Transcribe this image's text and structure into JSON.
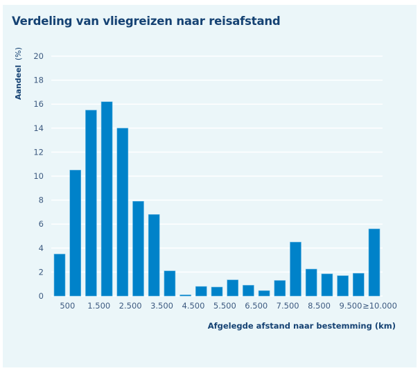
{
  "chart_data": {
    "type": "bar",
    "title": "Verdeling van vliegreizen naar reisafstand",
    "xlabel": "Afgelegde afstand naar bestemming (km)",
    "ylabel_bold": "Aandeel",
    "ylabel_unit": "(%)",
    "ylim": [
      0,
      20
    ],
    "yticks": [
      0,
      2,
      4,
      6,
      8,
      10,
      12,
      14,
      16,
      18,
      20
    ],
    "grid": true,
    "bins": [
      "0-500",
      "500-1.000",
      "1.000-1.500",
      "1.500-2.000",
      "2.000-2.500",
      "2.500-3.000",
      "3.000-3.500",
      "3.500-4.000",
      "4.000-4.500",
      "4.500-5.000",
      "5.000-5.500",
      "5.500-6.000",
      "6.000-6.500",
      "6.500-7.000",
      "7.000-7.500",
      "7.500-8.000",
      "8.000-8.500",
      "8.500-9.000",
      "9.000-9.500",
      "9.500-10.000",
      "≥10.000"
    ],
    "values": [
      3.5,
      10.5,
      15.5,
      16.2,
      14.0,
      7.9,
      6.8,
      2.1,
      0.1,
      0.8,
      0.75,
      1.35,
      0.9,
      0.45,
      1.3,
      4.5,
      2.25,
      1.85,
      1.7,
      1.9,
      5.6
    ],
    "xtick_labels": [
      "500",
      "1.500",
      "2.500",
      "3.500",
      "4.500",
      "5.500",
      "6.500",
      "7.500",
      "8.500",
      "9.500",
      "≥10.000"
    ],
    "colors": {
      "bar": "#0082c9",
      "background": "#ebf6f9",
      "title": "#154273",
      "grid": "#ffffff"
    }
  }
}
